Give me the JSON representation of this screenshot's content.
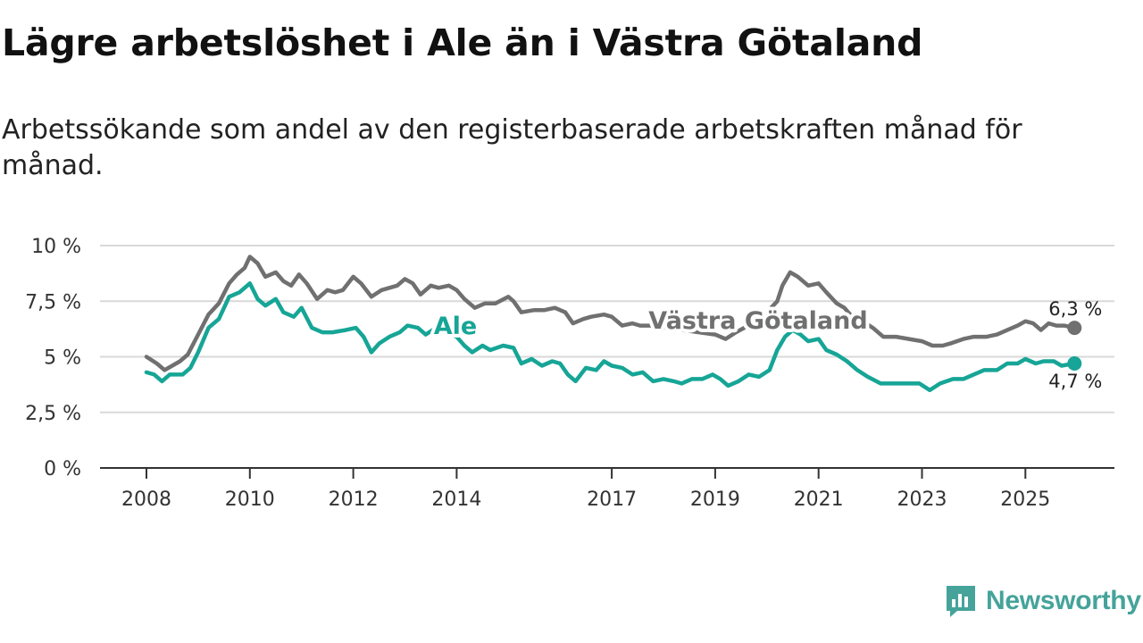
{
  "header": {
    "title": "Lägre arbetslöshet i Ale än i Västra Götaland",
    "subtitle": "Arbetssökande som andel av den registerbaserade arbetskraften månad för månad."
  },
  "brand": {
    "name": "Newsworthy",
    "icon": "bar-chart-document-icon",
    "color": "#45a39a"
  },
  "chart_data": {
    "type": "line",
    "title": "Lägre arbetslöshet i Ale än i Västra Götaland",
    "subtitle": "Arbetssökande som andel av den registerbaserade arbetskraften månad för månad.",
    "ylim": [
      0,
      10
    ],
    "yticks": [
      0,
      2.5,
      5,
      7.5,
      10
    ],
    "ytick_labels": [
      "0 %",
      "2,5 %",
      "5 %",
      "7,5 %",
      "10 %"
    ],
    "xlim": [
      2008.0,
      2026.0
    ],
    "xticks": [
      2008,
      2010,
      2012,
      2014,
      2017,
      2019,
      2021,
      2023,
      2025
    ],
    "xtick_labels": [
      "2008",
      "2010",
      "2012",
      "2014",
      "2017",
      "2019",
      "2021",
      "2023",
      "2025"
    ],
    "grid": true,
    "series": [
      {
        "name": "Västra Götaland",
        "color": "#707070",
        "end_label": "6,3 %",
        "points": [
          [
            2008.0,
            5.0
          ],
          [
            2008.2,
            4.7
          ],
          [
            2008.35,
            4.4
          ],
          [
            2008.5,
            4.6
          ],
          [
            2008.65,
            4.8
          ],
          [
            2008.8,
            5.1
          ],
          [
            2009.0,
            6.0
          ],
          [
            2009.2,
            6.9
          ],
          [
            2009.4,
            7.4
          ],
          [
            2009.6,
            8.3
          ],
          [
            2009.75,
            8.7
          ],
          [
            2009.9,
            9.0
          ],
          [
            2010.0,
            9.5
          ],
          [
            2010.15,
            9.2
          ],
          [
            2010.3,
            8.6
          ],
          [
            2010.5,
            8.8
          ],
          [
            2010.65,
            8.4
          ],
          [
            2010.8,
            8.2
          ],
          [
            2010.95,
            8.7
          ],
          [
            2011.1,
            8.3
          ],
          [
            2011.3,
            7.6
          ],
          [
            2011.5,
            8.0
          ],
          [
            2011.65,
            7.9
          ],
          [
            2011.8,
            8.0
          ],
          [
            2012.0,
            8.6
          ],
          [
            2012.15,
            8.3
          ],
          [
            2012.35,
            7.7
          ],
          [
            2012.55,
            8.0
          ],
          [
            2012.7,
            8.1
          ],
          [
            2012.85,
            8.2
          ],
          [
            2013.0,
            8.5
          ],
          [
            2013.15,
            8.3
          ],
          [
            2013.3,
            7.8
          ],
          [
            2013.5,
            8.2
          ],
          [
            2013.65,
            8.1
          ],
          [
            2013.85,
            8.2
          ],
          [
            2014.0,
            8.0
          ],
          [
            2014.15,
            7.6
          ],
          [
            2014.35,
            7.2
          ],
          [
            2014.55,
            7.4
          ],
          [
            2014.75,
            7.4
          ],
          [
            2015.0,
            7.7
          ],
          [
            2015.1,
            7.5
          ],
          [
            2015.25,
            7.0
          ],
          [
            2015.5,
            7.1
          ],
          [
            2015.7,
            7.1
          ],
          [
            2015.9,
            7.2
          ],
          [
            2016.1,
            7.0
          ],
          [
            2016.25,
            6.5
          ],
          [
            2016.45,
            6.7
          ],
          [
            2016.6,
            6.8
          ],
          [
            2016.85,
            6.9
          ],
          [
            2017.0,
            6.8
          ],
          [
            2017.2,
            6.4
          ],
          [
            2017.4,
            6.5
          ],
          [
            2017.55,
            6.4
          ],
          [
            2017.75,
            6.4
          ],
          [
            2019.0,
            6.0
          ],
          [
            2019.2,
            5.8
          ],
          [
            2019.4,
            6.1
          ],
          [
            2019.8,
            6.6
          ],
          [
            2020.0,
            7.0
          ],
          [
            2020.2,
            7.5
          ],
          [
            2020.3,
            8.2
          ],
          [
            2020.45,
            8.8
          ],
          [
            2020.6,
            8.6
          ],
          [
            2020.8,
            8.2
          ],
          [
            2021.0,
            8.3
          ],
          [
            2021.15,
            7.9
          ],
          [
            2021.35,
            7.4
          ],
          [
            2021.5,
            7.2
          ],
          [
            2021.65,
            6.8
          ],
          [
            2021.85,
            6.6
          ],
          [
            2022.05,
            6.3
          ],
          [
            2022.25,
            5.9
          ],
          [
            2022.5,
            5.9
          ],
          [
            2022.75,
            5.8
          ],
          [
            2023.0,
            5.7
          ],
          [
            2023.2,
            5.5
          ],
          [
            2023.4,
            5.5
          ],
          [
            2023.55,
            5.6
          ],
          [
            2023.8,
            5.8
          ],
          [
            2024.0,
            5.9
          ],
          [
            2024.25,
            5.9
          ],
          [
            2024.45,
            6.0
          ],
          [
            2024.65,
            6.2
          ],
          [
            2024.85,
            6.4
          ],
          [
            2025.0,
            6.6
          ],
          [
            2025.15,
            6.5
          ],
          [
            2025.3,
            6.2
          ],
          [
            2025.45,
            6.5
          ],
          [
            2025.6,
            6.4
          ],
          [
            2025.75,
            6.4
          ],
          [
            2025.95,
            6.3
          ]
        ]
      },
      {
        "name": "Ale",
        "color": "#16a596",
        "end_label": "4,7 %",
        "points": [
          [
            2008.0,
            4.3
          ],
          [
            2008.15,
            4.2
          ],
          [
            2008.3,
            3.9
          ],
          [
            2008.45,
            4.2
          ],
          [
            2008.7,
            4.2
          ],
          [
            2008.85,
            4.5
          ],
          [
            2009.0,
            5.2
          ],
          [
            2009.2,
            6.3
          ],
          [
            2009.4,
            6.7
          ],
          [
            2009.6,
            7.7
          ],
          [
            2009.8,
            7.9
          ],
          [
            2010.0,
            8.3
          ],
          [
            2010.15,
            7.6
          ],
          [
            2010.3,
            7.3
          ],
          [
            2010.5,
            7.6
          ],
          [
            2010.65,
            7.0
          ],
          [
            2010.85,
            6.8
          ],
          [
            2011.0,
            7.2
          ],
          [
            2011.2,
            6.3
          ],
          [
            2011.4,
            6.1
          ],
          [
            2011.6,
            6.1
          ],
          [
            2011.85,
            6.2
          ],
          [
            2012.05,
            6.3
          ],
          [
            2012.2,
            5.9
          ],
          [
            2012.35,
            5.2
          ],
          [
            2012.5,
            5.6
          ],
          [
            2012.7,
            5.9
          ],
          [
            2012.9,
            6.1
          ],
          [
            2013.05,
            6.4
          ],
          [
            2013.25,
            6.3
          ],
          [
            2013.4,
            6.0
          ],
          [
            2013.6,
            6.3
          ],
          [
            2014.0,
            5.9
          ],
          [
            2014.15,
            5.5
          ],
          [
            2014.3,
            5.2
          ],
          [
            2014.5,
            5.5
          ],
          [
            2014.65,
            5.3
          ],
          [
            2014.9,
            5.5
          ],
          [
            2015.1,
            5.4
          ],
          [
            2015.25,
            4.7
          ],
          [
            2015.45,
            4.9
          ],
          [
            2015.65,
            4.6
          ],
          [
            2015.85,
            4.8
          ],
          [
            2016.0,
            4.7
          ],
          [
            2016.15,
            4.2
          ],
          [
            2016.3,
            3.9
          ],
          [
            2016.5,
            4.5
          ],
          [
            2016.7,
            4.4
          ],
          [
            2016.85,
            4.8
          ],
          [
            2017.0,
            4.6
          ],
          [
            2017.2,
            4.5
          ],
          [
            2017.4,
            4.2
          ],
          [
            2017.6,
            4.3
          ],
          [
            2017.8,
            3.9
          ],
          [
            2018.0,
            4.0
          ],
          [
            2018.2,
            3.9
          ],
          [
            2018.35,
            3.8
          ],
          [
            2018.55,
            4.0
          ],
          [
            2018.75,
            4.0
          ],
          [
            2018.95,
            4.2
          ],
          [
            2019.1,
            4.0
          ],
          [
            2019.25,
            3.7
          ],
          [
            2019.45,
            3.9
          ],
          [
            2019.65,
            4.2
          ],
          [
            2019.85,
            4.1
          ],
          [
            2020.05,
            4.4
          ],
          [
            2020.2,
            5.3
          ],
          [
            2020.35,
            5.9
          ],
          [
            2020.5,
            6.2
          ],
          [
            2020.65,
            6.0
          ],
          [
            2020.8,
            5.7
          ],
          [
            2021.0,
            5.8
          ],
          [
            2021.15,
            5.3
          ],
          [
            2021.35,
            5.1
          ],
          [
            2021.55,
            4.8
          ],
          [
            2021.75,
            4.4
          ],
          [
            2021.95,
            4.1
          ],
          [
            2022.2,
            3.8
          ],
          [
            2022.5,
            3.8
          ],
          [
            2022.75,
            3.8
          ],
          [
            2022.95,
            3.8
          ],
          [
            2023.15,
            3.5
          ],
          [
            2023.35,
            3.8
          ],
          [
            2023.6,
            4.0
          ],
          [
            2023.8,
            4.0
          ],
          [
            2024.0,
            4.2
          ],
          [
            2024.2,
            4.4
          ],
          [
            2024.45,
            4.4
          ],
          [
            2024.65,
            4.7
          ],
          [
            2024.85,
            4.7
          ],
          [
            2025.0,
            4.9
          ],
          [
            2025.2,
            4.7
          ],
          [
            2025.35,
            4.8
          ],
          [
            2025.55,
            4.8
          ],
          [
            2025.7,
            4.6
          ],
          [
            2025.95,
            4.7
          ]
        ]
      }
    ]
  }
}
